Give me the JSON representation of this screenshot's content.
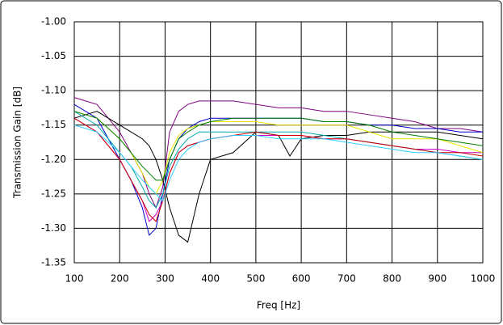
{
  "chart_data": {
    "type": "line",
    "x_label": "Freq [Hz]",
    "y_label": "Transmission Gain [dB]",
    "x": [
      100,
      150,
      200,
      225,
      250,
      265,
      280,
      295,
      310,
      330,
      350,
      375,
      400,
      450,
      500,
      550,
      575,
      600,
      650,
      700,
      750,
      800,
      850,
      900,
      950,
      1000
    ],
    "series": [
      {
        "color": "#800080",
        "values": [
          -1.11,
          -1.12,
          -1.16,
          -1.19,
          -1.22,
          -1.25,
          -1.27,
          -1.24,
          -1.16,
          -1.13,
          -1.12,
          -1.115,
          -1.115,
          -1.115,
          -1.12,
          -1.125,
          -1.125,
          -1.125,
          -1.13,
          -1.13,
          -1.135,
          -1.14,
          -1.145,
          -1.155,
          -1.155,
          -1.16
        ]
      },
      {
        "color": "#000000",
        "values": [
          -1.14,
          -1.13,
          -1.15,
          -1.16,
          -1.17,
          -1.18,
          -1.2,
          -1.23,
          -1.27,
          -1.31,
          -1.32,
          -1.25,
          -1.2,
          -1.19,
          -1.16,
          -1.165,
          -1.195,
          -1.17,
          -1.165,
          -1.165,
          -1.16,
          -1.16,
          -1.16,
          -1.16,
          -1.165,
          -1.17
        ]
      },
      {
        "color": "#0000cc",
        "values": [
          -1.12,
          -1.14,
          -1.2,
          -1.23,
          -1.27,
          -1.31,
          -1.3,
          -1.25,
          -1.2,
          -1.17,
          -1.155,
          -1.145,
          -1.14,
          -1.14,
          -1.14,
          -1.14,
          -1.14,
          -1.14,
          -1.145,
          -1.145,
          -1.15,
          -1.15,
          -1.155,
          -1.155,
          -1.16,
          -1.16
        ]
      },
      {
        "color": "#cc00cc",
        "values": [
          -1.14,
          -1.16,
          -1.2,
          -1.23,
          -1.26,
          -1.29,
          -1.28,
          -1.26,
          -1.22,
          -1.19,
          -1.18,
          -1.175,
          -1.17,
          -1.165,
          -1.165,
          -1.165,
          -1.165,
          -1.165,
          -1.17,
          -1.17,
          -1.175,
          -1.18,
          -1.185,
          -1.185,
          -1.19,
          -1.19
        ]
      },
      {
        "color": "#e6e600",
        "values": [
          -1.13,
          -1.14,
          -1.17,
          -1.19,
          -1.22,
          -1.24,
          -1.25,
          -1.23,
          -1.19,
          -1.165,
          -1.155,
          -1.15,
          -1.145,
          -1.145,
          -1.145,
          -1.15,
          -1.15,
          -1.15,
          -1.15,
          -1.15,
          -1.16,
          -1.17,
          -1.17,
          -1.17,
          -1.18,
          -1.19
        ]
      },
      {
        "color": "#00aaaa",
        "values": [
          -1.13,
          -1.15,
          -1.19,
          -1.21,
          -1.24,
          -1.26,
          -1.27,
          -1.25,
          -1.21,
          -1.185,
          -1.17,
          -1.16,
          -1.16,
          -1.16,
          -1.16,
          -1.16,
          -1.16,
          -1.16,
          -1.165,
          -1.17,
          -1.175,
          -1.18,
          -1.185,
          -1.19,
          -1.195,
          -1.2
        ]
      },
      {
        "color": "#008000",
        "values": [
          -1.13,
          -1.14,
          -1.17,
          -1.19,
          -1.21,
          -1.22,
          -1.23,
          -1.23,
          -1.2,
          -1.17,
          -1.16,
          -1.15,
          -1.145,
          -1.14,
          -1.14,
          -1.14,
          -1.14,
          -1.14,
          -1.145,
          -1.145,
          -1.15,
          -1.16,
          -1.165,
          -1.17,
          -1.175,
          -1.18
        ]
      },
      {
        "color": "#cc0000",
        "values": [
          -1.14,
          -1.16,
          -1.2,
          -1.23,
          -1.26,
          -1.28,
          -1.29,
          -1.26,
          -1.22,
          -1.19,
          -1.18,
          -1.175,
          -1.17,
          -1.165,
          -1.16,
          -1.165,
          -1.165,
          -1.165,
          -1.17,
          -1.17,
          -1.175,
          -1.18,
          -1.185,
          -1.19,
          -1.19,
          -1.195
        ]
      },
      {
        "color": "#33ccff",
        "values": [
          -1.15,
          -1.16,
          -1.19,
          -1.21,
          -1.23,
          -1.24,
          -1.25,
          -1.26,
          -1.23,
          -1.2,
          -1.185,
          -1.175,
          -1.17,
          -1.165,
          -1.165,
          -1.17,
          -1.17,
          -1.17,
          -1.17,
          -1.175,
          -1.18,
          -1.185,
          -1.19,
          -1.19,
          -1.195,
          -1.2
        ]
      }
    ],
    "xlim": [
      100,
      1000
    ],
    "xticks": [
      100,
      200,
      300,
      400,
      500,
      600,
      700,
      800,
      900,
      1000
    ],
    "ylim": [
      -1.35,
      -1.0
    ],
    "yticks": [
      {
        "value": -1.0,
        "label": "-1.00"
      },
      -1.05,
      {
        "value": -1.1,
        "label": "-1.10"
      },
      -1.15,
      {
        "value": -1.2,
        "label": "-1.20"
      },
      -1.25,
      {
        "value": -1.3,
        "label": "-1.30"
      },
      -1.35
    ],
    "grid": true
  }
}
